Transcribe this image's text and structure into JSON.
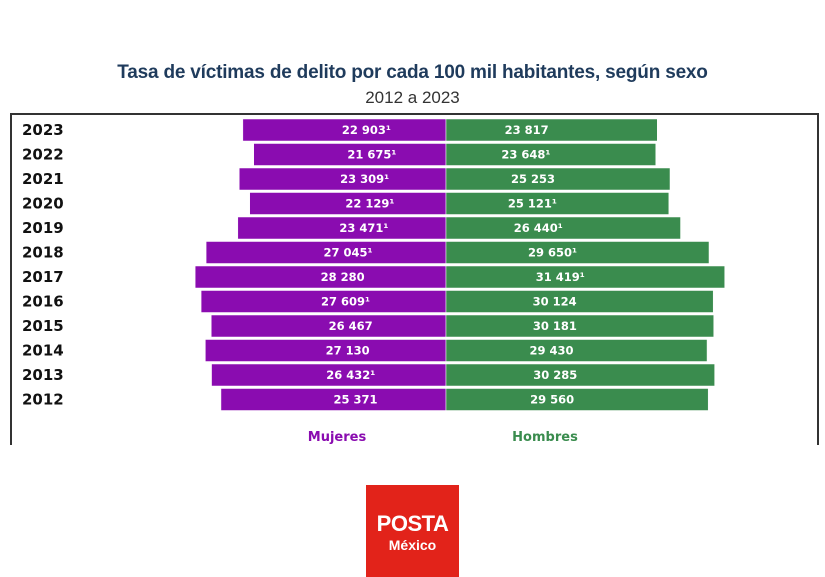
{
  "chart_data": {
    "type": "bar",
    "orientation": "horizontal-population-pyramid",
    "title": "Tasa de víctimas de delito por cada 100 mil habitantes, según sexo",
    "subtitle": "2012 a 2023",
    "categories": [
      "2023",
      "2022",
      "2021",
      "2020",
      "2019",
      "2018",
      "2017",
      "2016",
      "2015",
      "2014",
      "2013",
      "2012"
    ],
    "series": [
      {
        "name": "Mujeres",
        "color": "#8a0cb0",
        "side": "left",
        "values": [
          22903,
          21675,
          23309,
          22129,
          23471,
          27045,
          28280,
          27609,
          26467,
          27130,
          26432,
          25371
        ],
        "labels": [
          "22 903¹",
          "21 675¹",
          "23 309¹",
          "22 129¹",
          "23 471¹",
          "27 045¹",
          "28 280",
          "27 609¹",
          "26 467",
          "27 130",
          "26 432¹",
          "25 371"
        ]
      },
      {
        "name": "Hombres",
        "color": "#3a8c4e",
        "side": "right",
        "values": [
          23817,
          23648,
          25253,
          25121,
          26440,
          29650,
          31419,
          30124,
          30181,
          29430,
          30285,
          29560
        ],
        "labels": [
          "23 817",
          "23 648¹",
          "25 253",
          "25 121¹",
          "26 440¹",
          "29 650¹",
          "31 419¹",
          "30 124",
          "30 181",
          "29 430",
          "30 285",
          "29 560"
        ]
      }
    ],
    "legend_placement": "bottom",
    "grid": false
  },
  "logo": {
    "line1": "POSTA",
    "line2": "México",
    "color": "#e2231a"
  }
}
